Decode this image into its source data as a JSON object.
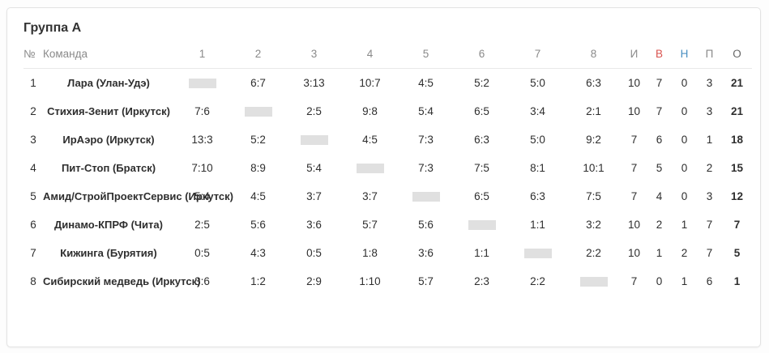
{
  "card": {
    "title": "Группа А"
  },
  "colors": {
    "win": "#d9534f",
    "draw": "#4a90c2",
    "loss": "#2e2e2e",
    "self_box": "#e0e0e0"
  },
  "table": {
    "columns": [
      "№",
      "Команда",
      "1",
      "2",
      "3",
      "4",
      "5",
      "6",
      "7",
      "8",
      "И",
      "В",
      "Н",
      "П",
      "О"
    ],
    "rows": [
      {
        "num": "1",
        "team": "Лара (Улан-Удэ)",
        "scores": [
          {
            "self": true
          },
          {
            "v": "6:7",
            "t": "loss"
          },
          {
            "v": "3:13",
            "t": "loss"
          },
          {
            "v": "10:7",
            "t": "win"
          },
          {
            "v": "4:5",
            "t": "loss"
          },
          {
            "v": "5:2",
            "t": "win"
          },
          {
            "v": "5:0",
            "t": "win"
          },
          {
            "v": "6:3",
            "t": "win"
          }
        ],
        "games": "10",
        "wins": "7",
        "draws": "0",
        "losses": "3",
        "points": "21"
      },
      {
        "num": "2",
        "team": "Стихия-Зенит (Иркутск)",
        "scores": [
          {
            "v": "7:6",
            "t": "win"
          },
          {
            "self": true
          },
          {
            "v": "2:5",
            "t": "loss"
          },
          {
            "v": "9:8",
            "t": "win"
          },
          {
            "v": "5:4",
            "t": "win"
          },
          {
            "v": "6:5",
            "t": "win"
          },
          {
            "v": "3:4",
            "t": "loss"
          },
          {
            "v": "2:1",
            "t": "win"
          }
        ],
        "games": "10",
        "wins": "7",
        "draws": "0",
        "losses": "3",
        "points": "21"
      },
      {
        "num": "3",
        "team": "ИрАэро (Иркутск)",
        "scores": [
          {
            "v": "13:3",
            "t": "win"
          },
          {
            "v": "5:2",
            "t": "win"
          },
          {
            "self": true
          },
          {
            "v": "4:5",
            "t": "loss"
          },
          {
            "v": "7:3",
            "t": "win"
          },
          {
            "v": "6:3",
            "t": "win"
          },
          {
            "v": "5:0",
            "t": "win"
          },
          {
            "v": "9:2",
            "t": "win"
          }
        ],
        "games": "7",
        "wins": "6",
        "draws": "0",
        "losses": "1",
        "points": "18"
      },
      {
        "num": "4",
        "team": "Пит-Стоп (Братск)",
        "scores": [
          {
            "v": "7:10",
            "t": "loss"
          },
          {
            "v": "8:9",
            "t": "loss"
          },
          {
            "v": "5:4",
            "t": "win"
          },
          {
            "self": true
          },
          {
            "v": "7:3",
            "t": "win"
          },
          {
            "v": "7:5",
            "t": "win"
          },
          {
            "v": "8:1",
            "t": "win"
          },
          {
            "v": "10:1",
            "t": "win"
          }
        ],
        "games": "7",
        "wins": "5",
        "draws": "0",
        "losses": "2",
        "points": "15"
      },
      {
        "num": "5",
        "team": "Амид/СтройПроектСервис (Иркутск)",
        "scores": [
          {
            "v": "5:4",
            "t": "win"
          },
          {
            "v": "4:5",
            "t": "loss"
          },
          {
            "v": "3:7",
            "t": "loss"
          },
          {
            "v": "3:7",
            "t": "loss"
          },
          {
            "self": true
          },
          {
            "v": "6:5",
            "t": "win"
          },
          {
            "v": "6:3",
            "t": "win"
          },
          {
            "v": "7:5",
            "t": "win"
          }
        ],
        "games": "7",
        "wins": "4",
        "draws": "0",
        "losses": "3",
        "points": "12"
      },
      {
        "num": "6",
        "team": "Динамо-КПРФ (Чита)",
        "scores": [
          {
            "v": "2:5",
            "t": "loss"
          },
          {
            "v": "5:6",
            "t": "loss"
          },
          {
            "v": "3:6",
            "t": "loss"
          },
          {
            "v": "5:7",
            "t": "loss"
          },
          {
            "v": "5:6",
            "t": "loss"
          },
          {
            "self": true
          },
          {
            "v": "1:1",
            "t": "draw"
          },
          {
            "v": "3:2",
            "t": "win"
          }
        ],
        "games": "10",
        "wins": "2",
        "draws": "1",
        "losses": "7",
        "points": "7"
      },
      {
        "num": "7",
        "team": "Кижинга (Бурятия)",
        "scores": [
          {
            "v": "0:5",
            "t": "loss"
          },
          {
            "v": "4:3",
            "t": "win"
          },
          {
            "v": "0:5",
            "t": "loss"
          },
          {
            "v": "1:8",
            "t": "loss"
          },
          {
            "v": "3:6",
            "t": "loss"
          },
          {
            "v": "1:1",
            "t": "draw"
          },
          {
            "self": true
          },
          {
            "v": "2:2",
            "t": "draw"
          }
        ],
        "games": "10",
        "wins": "1",
        "draws": "2",
        "losses": "7",
        "points": "5"
      },
      {
        "num": "8",
        "team": "Сибирский медведь (Иркутск)",
        "scores": [
          {
            "v": "3:6",
            "t": "loss"
          },
          {
            "v": "1:2",
            "t": "loss"
          },
          {
            "v": "2:9",
            "t": "loss"
          },
          {
            "v": "1:10",
            "t": "loss"
          },
          {
            "v": "5:7",
            "t": "loss"
          },
          {
            "v": "2:3",
            "t": "loss"
          },
          {
            "v": "2:2",
            "t": "draw"
          },
          {
            "self": true
          }
        ],
        "games": "7",
        "wins": "0",
        "draws": "1",
        "losses": "6",
        "points": "1"
      }
    ]
  }
}
